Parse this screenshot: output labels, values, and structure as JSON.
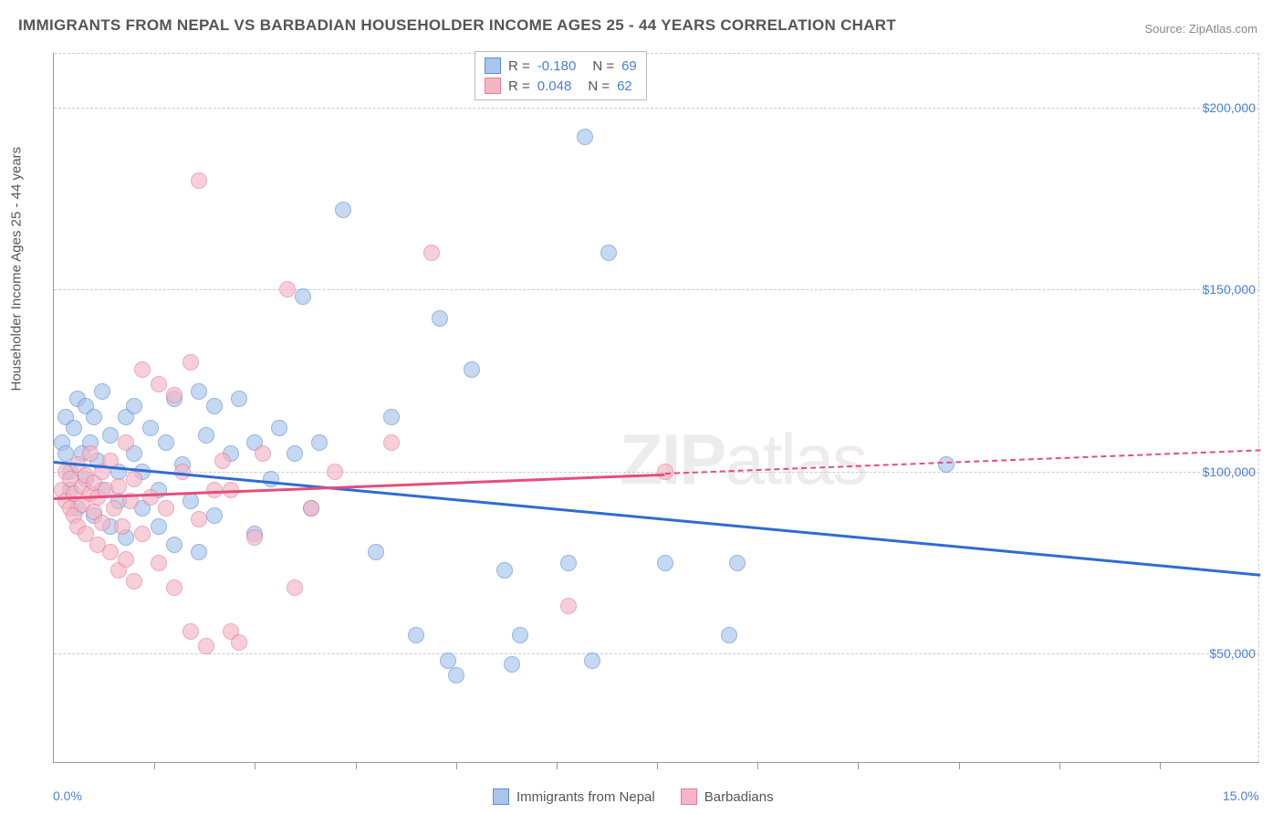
{
  "title": "IMMIGRANTS FROM NEPAL VS BARBADIAN HOUSEHOLDER INCOME AGES 25 - 44 YEARS CORRELATION CHART",
  "source": "Source: ZipAtlas.com",
  "watermark": "ZIPatlas",
  "y_axis_label": "Householder Income Ages 25 - 44 years",
  "chart": {
    "type": "scatter",
    "xlim": [
      0,
      15
    ],
    "ylim": [
      20000,
      215000
    ],
    "x_ticks_minor": [
      1.25,
      2.5,
      3.75,
      5.0,
      6.25,
      7.5,
      8.75,
      10.0,
      11.25,
      12.5,
      13.75
    ],
    "x_tick_labels": [
      {
        "x": 0,
        "label": "0.0%"
      },
      {
        "x": 15,
        "label": "15.0%"
      }
    ],
    "y_gridlines": [
      50000,
      100000,
      150000,
      200000,
      215000
    ],
    "y_tick_labels": [
      {
        "y": 50000,
        "label": "$50,000"
      },
      {
        "y": 100000,
        "label": "$100,000"
      },
      {
        "y": 150000,
        "label": "$150,000"
      },
      {
        "y": 200000,
        "label": "$200,000"
      }
    ],
    "background_color": "#ffffff",
    "grid_color": "#cccccc",
    "point_radius": 9
  },
  "series": [
    {
      "id": "nepal",
      "name": "Immigrants from Nepal",
      "fill_color": "#a8c5ec",
      "stroke_color": "#5b8fd6",
      "R": "-0.180",
      "N": "69",
      "trend": {
        "x1": 0,
        "y1": 103000,
        "x2": 15,
        "y2": 72000,
        "solid_until": 15,
        "color": "#2d6cd4"
      },
      "points": [
        [
          0.1,
          108000
        ],
        [
          0.15,
          105000
        ],
        [
          0.15,
          115000
        ],
        [
          0.2,
          100000
        ],
        [
          0.2,
          95000
        ],
        [
          0.25,
          112000
        ],
        [
          0.3,
          120000
        ],
        [
          0.3,
          90000
        ],
        [
          0.35,
          105000
        ],
        [
          0.4,
          118000
        ],
        [
          0.4,
          98000
        ],
        [
          0.45,
          108000
        ],
        [
          0.5,
          115000
        ],
        [
          0.5,
          88000
        ],
        [
          0.55,
          103000
        ],
        [
          0.6,
          95000
        ],
        [
          0.6,
          122000
        ],
        [
          0.7,
          110000
        ],
        [
          0.7,
          85000
        ],
        [
          0.8,
          100000
        ],
        [
          0.8,
          92000
        ],
        [
          0.9,
          115000
        ],
        [
          0.9,
          82000
        ],
        [
          1.0,
          118000
        ],
        [
          1.0,
          105000
        ],
        [
          1.1,
          90000
        ],
        [
          1.1,
          100000
        ],
        [
          1.2,
          112000
        ],
        [
          1.3,
          85000
        ],
        [
          1.3,
          95000
        ],
        [
          1.4,
          108000
        ],
        [
          1.5,
          120000
        ],
        [
          1.5,
          80000
        ],
        [
          1.6,
          102000
        ],
        [
          1.7,
          92000
        ],
        [
          1.8,
          122000
        ],
        [
          1.8,
          78000
        ],
        [
          1.9,
          110000
        ],
        [
          2.0,
          118000
        ],
        [
          2.0,
          88000
        ],
        [
          2.2,
          105000
        ],
        [
          2.3,
          120000
        ],
        [
          2.5,
          108000
        ],
        [
          2.5,
          83000
        ],
        [
          2.7,
          98000
        ],
        [
          2.8,
          112000
        ],
        [
          3.0,
          105000
        ],
        [
          3.1,
          148000
        ],
        [
          3.2,
          90000
        ],
        [
          3.3,
          108000
        ],
        [
          3.6,
          172000
        ],
        [
          4.0,
          78000
        ],
        [
          4.2,
          115000
        ],
        [
          4.5,
          55000
        ],
        [
          4.8,
          142000
        ],
        [
          4.9,
          48000
        ],
        [
          5.0,
          44000
        ],
        [
          5.2,
          128000
        ],
        [
          5.6,
          73000
        ],
        [
          5.7,
          47000
        ],
        [
          5.8,
          55000
        ],
        [
          6.4,
          75000
        ],
        [
          6.6,
          192000
        ],
        [
          6.7,
          48000
        ],
        [
          6.9,
          160000
        ],
        [
          7.6,
          75000
        ],
        [
          8.4,
          55000
        ],
        [
          8.5,
          75000
        ],
        [
          11.1,
          102000
        ]
      ]
    },
    {
      "id": "barbadians",
      "name": "Barbadians",
      "fill_color": "#f4b6c5",
      "stroke_color": "#e87a9a",
      "R": "0.048",
      "N": "62",
      "trend": {
        "x1": 0,
        "y1": 93000,
        "x2": 15,
        "y2": 106000,
        "solid_until": 7.6,
        "color": "#e64d7a"
      },
      "points": [
        [
          0.1,
          95000
        ],
        [
          0.15,
          92000
        ],
        [
          0.15,
          100000
        ],
        [
          0.2,
          90000
        ],
        [
          0.2,
          98000
        ],
        [
          0.25,
          94000
        ],
        [
          0.25,
          88000
        ],
        [
          0.3,
          102000
        ],
        [
          0.3,
          85000
        ],
        [
          0.35,
          96000
        ],
        [
          0.35,
          91000
        ],
        [
          0.4,
          99000
        ],
        [
          0.4,
          83000
        ],
        [
          0.45,
          94000
        ],
        [
          0.45,
          105000
        ],
        [
          0.5,
          89000
        ],
        [
          0.5,
          97000
        ],
        [
          0.55,
          80000
        ],
        [
          0.55,
          93000
        ],
        [
          0.6,
          100000
        ],
        [
          0.6,
          86000
        ],
        [
          0.65,
          95000
        ],
        [
          0.7,
          78000
        ],
        [
          0.7,
          103000
        ],
        [
          0.75,
          90000
        ],
        [
          0.8,
          73000
        ],
        [
          0.8,
          96000
        ],
        [
          0.85,
          85000
        ],
        [
          0.9,
          108000
        ],
        [
          0.9,
          76000
        ],
        [
          0.95,
          92000
        ],
        [
          1.0,
          70000
        ],
        [
          1.0,
          98000
        ],
        [
          1.1,
          128000
        ],
        [
          1.1,
          83000
        ],
        [
          1.2,
          93000
        ],
        [
          1.3,
          124000
        ],
        [
          1.3,
          75000
        ],
        [
          1.4,
          90000
        ],
        [
          1.5,
          121000
        ],
        [
          1.5,
          68000
        ],
        [
          1.6,
          100000
        ],
        [
          1.7,
          56000
        ],
        [
          1.7,
          130000
        ],
        [
          1.8,
          180000
        ],
        [
          1.8,
          87000
        ],
        [
          1.9,
          52000
        ],
        [
          2.0,
          95000
        ],
        [
          2.1,
          103000
        ],
        [
          2.2,
          56000
        ],
        [
          2.2,
          95000
        ],
        [
          2.3,
          53000
        ],
        [
          2.5,
          82000
        ],
        [
          2.6,
          105000
        ],
        [
          2.9,
          150000
        ],
        [
          3.0,
          68000
        ],
        [
          3.2,
          90000
        ],
        [
          3.5,
          100000
        ],
        [
          4.2,
          108000
        ],
        [
          4.7,
          160000
        ],
        [
          6.4,
          63000
        ],
        [
          7.6,
          100000
        ]
      ]
    }
  ],
  "stats_box": {
    "rows": [
      {
        "swatch_fill": "#a8c5ec",
        "swatch_stroke": "#5b8fd6",
        "r_label": "R =",
        "r_val": "-0.180",
        "n_label": "N =",
        "n_val": "69"
      },
      {
        "swatch_fill": "#f4b6c5",
        "swatch_stroke": "#e87a9a",
        "r_label": "R =",
        "r_val": "0.048",
        "n_label": "N =",
        "n_val": "62"
      }
    ]
  },
  "legend_bottom": [
    {
      "swatch_fill": "#a8c5ec",
      "swatch_stroke": "#5b8fd6",
      "label": "Immigrants from Nepal"
    },
    {
      "swatch_fill": "#f4b6c5",
      "swatch_stroke": "#e87a9a",
      "label": "Barbadians"
    }
  ]
}
